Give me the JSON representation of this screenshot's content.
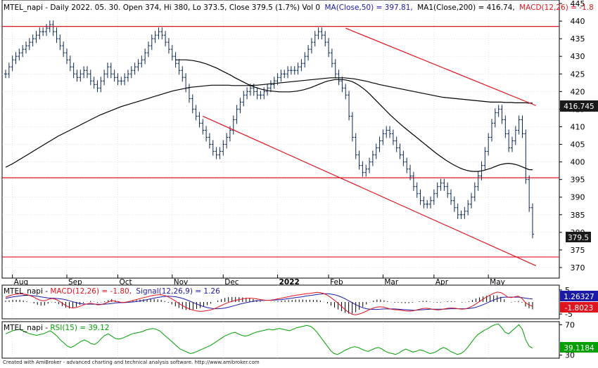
{
  "header": {
    "prefix": "MTEL_napi - Daily 2022. 05. 30. Open 374, Hi 380, Lo 373.5, Close 379.5 (1.7%) Vol 0",
    "ma50": "MA(Close,50) = 397.81,",
    "ma200": "MA1(Close,200) = 416.74,",
    "macd": "MACD(12,26) = -1.8"
  },
  "macd_header": {
    "prefix": "MTEL_napi - ",
    "macd": "MACD(12,26) = -1.80,",
    "signal": "Signal(12,26,9) = 1.26"
  },
  "rsi_header": {
    "prefix": "MTEL_napi - ",
    "rsi": "RSI(15) = 39.12"
  },
  "price_badges": {
    "ma200": "416.745",
    "close": "379.5"
  },
  "macd_badges": {
    "signal": "1.26327",
    "macd": "-1.8023"
  },
  "rsi_badge": "39.1184",
  "footer": "Created with AmiBroker - advanced charting and technical analysis software. http://www.amibroker.com",
  "colors": {
    "price_bar": "#0b2a55",
    "ma": "#000000",
    "trendline": "#e0141e",
    "macd": "#e0141e",
    "signal": "#1a1aa8",
    "rsi": "#00a000",
    "badge_dark": "#1a1a1a"
  },
  "chart_data": [
    {
      "type": "candlestick",
      "ylim": [
        367,
        446
      ],
      "y_ticks": [
        370,
        375,
        380,
        385,
        390,
        395,
        400,
        405,
        410,
        415,
        420,
        425,
        430,
        435,
        440,
        445
      ],
      "x_labels": [
        "Aug",
        "Sep",
        "Oct",
        "Nov",
        "Dec",
        "2022",
        "Feb",
        "Mar",
        "Apr",
        "May"
      ],
      "last_close": 379.5,
      "close_series": [
        425,
        427,
        429,
        430,
        431,
        432,
        433,
        434,
        435,
        436,
        437,
        437,
        438,
        439,
        437,
        435,
        433,
        431,
        429,
        427,
        425,
        424,
        425,
        426,
        425,
        423,
        422,
        421,
        423,
        425,
        427,
        425,
        424,
        423,
        423,
        424,
        425,
        426,
        427,
        428,
        429,
        431,
        433,
        435,
        436,
        437,
        436,
        434,
        432,
        430,
        428,
        426,
        424,
        421,
        418,
        415,
        413,
        411,
        409,
        407,
        405,
        403,
        402,
        403,
        405,
        407,
        409,
        412,
        415,
        417,
        419,
        420,
        421,
        420,
        419,
        419,
        420,
        421,
        422,
        423,
        424,
        425,
        425,
        426,
        426,
        426,
        427,
        428,
        430,
        432,
        434,
        436,
        437,
        436,
        434,
        431,
        428,
        425,
        423,
        421,
        419,
        413,
        407,
        402,
        399,
        397,
        398,
        400,
        402,
        404,
        406,
        408,
        409,
        408,
        406,
        404,
        402,
        400,
        398,
        396,
        393,
        391,
        389,
        388,
        388,
        389,
        391,
        393,
        394,
        393,
        391,
        389,
        387,
        385,
        385,
        386,
        388,
        390,
        393,
        396,
        399,
        403,
        407,
        411,
        414,
        415,
        412,
        408,
        404,
        406,
        409,
        412,
        408,
        395,
        387,
        379.5
      ],
      "horizontal_lines": [
        438.5,
        395.5,
        373
      ],
      "channel_upper": {
        "from": [
          100,
          438
        ],
        "to": [
          156,
          416
        ]
      },
      "channel_lower": {
        "from": [
          58,
          413
        ],
        "to": [
          156,
          370.5
        ]
      },
      "ma50_series": [
        null,
        null,
        null,
        null,
        null,
        null,
        null,
        null,
        null,
        null,
        null,
        null,
        null,
        null,
        null,
        null,
        null,
        null,
        null,
        null,
        null,
        null,
        null,
        null,
        null,
        null,
        null,
        null,
        null,
        null,
        null,
        null,
        null,
        null,
        null,
        null,
        null,
        null,
        null,
        null,
        null,
        null,
        null,
        null,
        null,
        null,
        null,
        null,
        null,
        429,
        429,
        429,
        429,
        428.9,
        428.8,
        428.6,
        428.4,
        428.1,
        427.8,
        427.4,
        427,
        426.6,
        426.1,
        425.6,
        425.1,
        424.6,
        424,
        423.5,
        423,
        422.5,
        422,
        421.6,
        421.2,
        420.9,
        420.6,
        420.4,
        420.2,
        420.1,
        420,
        419.9,
        419.9,
        419.9,
        419.9,
        420,
        420.1,
        420.3,
        420.5,
        420.8,
        421.1,
        421.5,
        421.9,
        422.3,
        422.7,
        423,
        423.2,
        423.4,
        423.4,
        423.4,
        423.3,
        423.1,
        422.8,
        422.3,
        421.7,
        421,
        420.2,
        419.3,
        418.3,
        417.3,
        416.3,
        415.3,
        414.3,
        413.3,
        412.4,
        411.5,
        410.6,
        409.8,
        409,
        408.2,
        407.4,
        406.6,
        405.8,
        405,
        404.2,
        403.4,
        402.6,
        401.9,
        401.2,
        400.5,
        399.9,
        399.3,
        398.8,
        398.3,
        397.9,
        397.6,
        397.4,
        397.3,
        397.3,
        397.4,
        397.6,
        397.9,
        398.2,
        398.6,
        399,
        399.3,
        399.5,
        399.6,
        399.5,
        399.3,
        399,
        398.6,
        398.2,
        397.8,
        397.81
      ],
      "ma200_series": [
        398.5,
        399,
        399.5,
        400.1,
        400.7,
        401.3,
        401.9,
        402.5,
        403.1,
        403.7,
        404.3,
        404.9,
        405.5,
        406.1,
        406.7,
        407.3,
        407.8,
        408.3,
        408.8,
        409.3,
        409.8,
        410.3,
        410.8,
        411.3,
        411.8,
        412.3,
        412.8,
        413.3,
        413.7,
        414.1,
        414.5,
        414.9,
        415.3,
        415.7,
        416,
        416.3,
        416.6,
        416.9,
        417.2,
        417.5,
        417.8,
        418.1,
        418.4,
        418.7,
        419,
        419.3,
        419.6,
        419.9,
        420.2,
        420.4,
        420.6,
        420.8,
        421,
        421.2,
        421.3,
        421.4,
        421.5,
        421.6,
        421.7,
        421.8,
        421.8,
        421.8,
        421.8,
        421.8,
        421.8,
        421.7,
        421.7,
        421.7,
        421.7,
        421.7,
        421.7,
        421.8,
        421.8,
        421.9,
        422,
        422.1,
        422.2,
        422.3,
        422.4,
        422.5,
        422.6,
        422.7,
        422.8,
        422.9,
        423,
        423.1,
        423.2,
        423.3,
        423.4,
        423.5,
        423.6,
        423.7,
        423.8,
        423.9,
        423.9,
        423.9,
        423.9,
        423.9,
        423.8,
        423.7,
        423.6,
        423.4,
        423.2,
        423,
        422.8,
        422.5,
        422.3,
        422,
        421.8,
        421.6,
        421.4,
        421.2,
        421,
        420.8,
        420.6,
        420.4,
        420.2,
        420,
        419.8,
        419.6,
        419.4,
        419.2,
        419,
        418.8,
        418.6,
        418.4,
        418.3,
        418.2,
        418.1,
        418,
        417.9,
        417.8,
        417.7,
        417.6,
        417.5,
        417.4,
        417.3,
        417.2,
        417.1,
        417,
        417,
        417,
        417,
        416.9,
        416.9,
        416.9,
        416.8,
        416.8,
        416.8,
        416.8,
        416.7,
        416.74
      ]
    },
    {
      "type": "line",
      "name_macd": "MACD(12,26)",
      "name_signal": "Signal(12,26,9)",
      "ylim": [
        -7,
        7
      ],
      "y_ticks": [
        5,
        -5
      ],
      "last_macd": -1.8023,
      "last_signal": 1.26327,
      "macd_series": [
        2,
        2.5,
        3,
        3.2,
        3.4,
        3.3,
        3.1,
        2.6,
        2,
        1.2,
        0.6,
        0.5,
        1,
        1.5,
        1.2,
        0.5,
        -0.5,
        -1.5,
        -2.2,
        -2.5,
        -2.3,
        -1.8,
        -1.2,
        -0.8,
        -0.5,
        -0.8,
        -1.2,
        -1.1,
        -0.6,
        0,
        0.6,
        0.3,
        0,
        -0.2,
        -0.1,
        0.2,
        0.6,
        1,
        1.4,
        1.8,
        2.1,
        2.5,
        2.8,
        3,
        3,
        2.7,
        2.1,
        1.3,
        0.4,
        -0.6,
        -1.5,
        -2.3,
        -2.9,
        -3.4,
        -3.7,
        -3.9,
        -3.8,
        -3.6,
        -3.3,
        -2.8,
        -2.2,
        -1.5,
        -0.8,
        -0.2,
        0.3,
        0.7,
        1,
        1.3,
        1.5,
        1.6,
        1.5,
        1.3,
        1,
        0.8,
        0.7,
        0.8,
        1,
        1.3,
        1.6,
        1.9,
        2.2,
        2.5,
        2.8,
        3,
        3.2,
        3.4,
        3.6,
        3.8,
        4,
        3.9,
        3.5,
        2.8,
        1.8,
        0.7,
        -0.5,
        -1.8,
        -3.2,
        -4.3,
        -5.1,
        -5.3,
        -5,
        -4.5,
        -3.8,
        -3.1,
        -2.5,
        -2.1,
        -2,
        -2.2,
        -2.6,
        -3,
        -3.2,
        -3.3,
        -3.5,
        -3.7,
        -3.8,
        -3.7,
        -3.4,
        -3,
        -2.7,
        -2.6,
        -2.8,
        -3.1,
        -3.3,
        -3.2,
        -2.9,
        -2.6,
        -2.5,
        -2.6,
        -2.8,
        -3,
        -2.9,
        -2.4,
        -1.7,
        -0.8,
        0.2,
        1.2,
        2.1,
        2.9,
        3.6,
        4.1,
        3.9,
        3.1,
        2,
        1.8,
        2.2,
        2.4,
        1.5,
        -0.3,
        -1.2,
        -1.8
      ],
      "signal_series": [
        1.5,
        1.8,
        2.1,
        2.3,
        2.5,
        2.7,
        2.8,
        2.7,
        2.6,
        2.4,
        2.1,
        1.9,
        1.7,
        1.6,
        1.5,
        1.4,
        1.2,
        0.9,
        0.5,
        0.1,
        -0.3,
        -0.6,
        -0.8,
        -0.9,
        -0.9,
        -0.9,
        -0.9,
        -1,
        -0.9,
        -0.8,
        -0.6,
        -0.4,
        -0.3,
        -0.3,
        -0.2,
        -0.1,
        0,
        0.2,
        0.4,
        0.7,
        1,
        1.3,
        1.6,
        1.9,
        2.1,
        2.3,
        2.4,
        2.3,
        2.2,
        1.9,
        1.5,
        1,
        0.4,
        -0.2,
        -0.8,
        -1.4,
        -1.9,
        -2.3,
        -2.6,
        -2.8,
        -2.8,
        -2.7,
        -2.5,
        -2.2,
        -1.8,
        -1.4,
        -1,
        -0.6,
        -0.3,
        0,
        0.3,
        0.5,
        0.6,
        0.7,
        0.7,
        0.7,
        0.8,
        0.9,
        1,
        1.2,
        1.4,
        1.6,
        1.8,
        2,
        2.2,
        2.5,
        2.7,
        2.9,
        3.1,
        3.3,
        3.4,
        3.4,
        3.3,
        3,
        2.6,
        2,
        1.3,
        0.5,
        -0.3,
        -1.1,
        -1.8,
        -2.4,
        -2.8,
        -3,
        -3.1,
        -3.1,
        -3,
        -2.9,
        -2.9,
        -2.9,
        -2.9,
        -3,
        -3.1,
        -3.2,
        -3.3,
        -3.4,
        -3.4,
        -3.3,
        -3.2,
        -3.1,
        -3,
        -3,
        -3,
        -3,
        -3,
        -2.9,
        -2.8,
        -2.8,
        -2.8,
        -2.8,
        -2.8,
        -2.7,
        -2.5,
        -2.2,
        -1.7,
        -1.1,
        -0.5,
        0.2,
        0.8,
        1.4,
        1.8,
        2,
        2,
        2,
        2,
        2,
        1.8,
        1.6,
        1.4,
        1.26327
      ]
    },
    {
      "type": "line",
      "name": "RSI(15)",
      "ylim": [
        26,
        74
      ],
      "y_ticks": [
        70,
        30
      ],
      "last_value": 39.12,
      "series": [
        58,
        60,
        62,
        63,
        64,
        62,
        60,
        58,
        57,
        56,
        57,
        58,
        60,
        62,
        59,
        55,
        50,
        46,
        42,
        40,
        42,
        45,
        48,
        50,
        48,
        45,
        44,
        47,
        52,
        56,
        58,
        55,
        52,
        51,
        52,
        54,
        56,
        58,
        59,
        60,
        61,
        63,
        64,
        65,
        64,
        62,
        58,
        54,
        50,
        46,
        42,
        38,
        36,
        34,
        32,
        33,
        35,
        37,
        39,
        41,
        43,
        46,
        49,
        52,
        55,
        57,
        59,
        60,
        58,
        56,
        55,
        56,
        58,
        60,
        61,
        62,
        63,
        64,
        63,
        64,
        65,
        64,
        63,
        62,
        64,
        66,
        67,
        68,
        69,
        68,
        65,
        60,
        54,
        48,
        42,
        36,
        32,
        31,
        33,
        36,
        38,
        40,
        41,
        40,
        38,
        36,
        35,
        37,
        39,
        40,
        38,
        35,
        33,
        32,
        31,
        33,
        36,
        38,
        36,
        34,
        35,
        37,
        36,
        34,
        32,
        33,
        35,
        38,
        40,
        38,
        35,
        33,
        31,
        32,
        35,
        40,
        46,
        52,
        57,
        60,
        63,
        65,
        68,
        70,
        71,
        66,
        60,
        58,
        62,
        66,
        70,
        64,
        50,
        42,
        39.12
      ]
    }
  ]
}
